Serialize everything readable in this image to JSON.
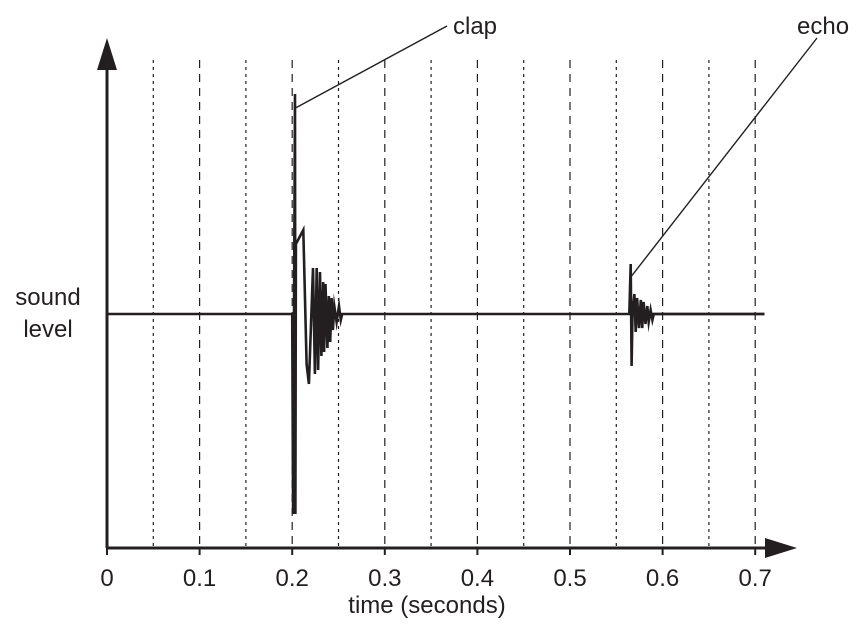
{
  "chart_data": {
    "type": "line",
    "title": "",
    "xlabel": "time (seconds)",
    "ylabel": [
      "sound",
      "level"
    ],
    "xlim": [
      0,
      0.71
    ],
    "ylim": [
      -1.1,
      1.1
    ],
    "x_tick_labels": [
      "0",
      "0.1",
      "0.2",
      "0.3",
      "0.4",
      "0.5",
      "0.6",
      "0.7"
    ],
    "x_tick_values": [
      0,
      0.1,
      0.2,
      0.3,
      0.4,
      0.5,
      0.6,
      0.7
    ],
    "gridlines": {
      "dashed_at": [
        0.1,
        0.2,
        0.3,
        0.4,
        0.5,
        0.6,
        0.7
      ],
      "dotted_at": [
        0.05,
        0.15,
        0.25,
        0.35,
        0.45,
        0.55,
        0.65
      ]
    },
    "y_axis_tick_labels_shown": false,
    "series": [
      {
        "x": [
          0,
          0.2,
          0.201,
          0.203,
          0.2035,
          0.204,
          0.212,
          0.2155,
          0.218,
          0.2225,
          0.2245,
          0.2265,
          0.228,
          0.23,
          0.2315,
          0.2335,
          0.2345,
          0.236,
          0.238,
          0.2395,
          0.241,
          0.2425,
          0.244,
          0.2455,
          0.248,
          0.2505,
          0.2525,
          0.254,
          0.2585,
          0.2605,
          0.264,
          0.71
        ],
        "y": [
          0,
          0,
          -1.0,
          1.1,
          -1.0,
          0.35,
          0.42,
          -0.25,
          -0.35,
          0.23,
          -0.3,
          0.23,
          -0.28,
          0.21,
          -0.21,
          0.16,
          -0.19,
          0.15,
          -0.17,
          0.09,
          -0.14,
          0.08,
          -0.08,
          0.04,
          -0.04,
          0.04,
          -0.03,
          0.0,
          0.0,
          0.0,
          0.0,
          0.0
        ]
      },
      {
        "x": [
          0.564,
          0.5655,
          0.5665,
          0.5675,
          0.5695,
          0.571,
          0.5725,
          0.5745,
          0.5765,
          0.578,
          0.5795,
          0.5815,
          0.5835,
          0.585,
          0.587,
          0.589,
          0.5905,
          0.592,
          0.71
        ],
        "y": [
          0,
          0.25,
          -0.26,
          0.0,
          0.1,
          -0.09,
          0.08,
          -0.07,
          0.07,
          -0.07,
          0.06,
          -0.05,
          0.04,
          -0.04,
          0.02,
          -0.03,
          0.0,
          0.0,
          0.0
        ]
      }
    ],
    "annotations": [
      {
        "text": "clap",
        "points_to": {
          "x": 0.2035,
          "y": 1.03
        }
      },
      {
        "text": "echo",
        "points_to": {
          "x": 0.5665,
          "y": 0.19
        }
      }
    ]
  }
}
